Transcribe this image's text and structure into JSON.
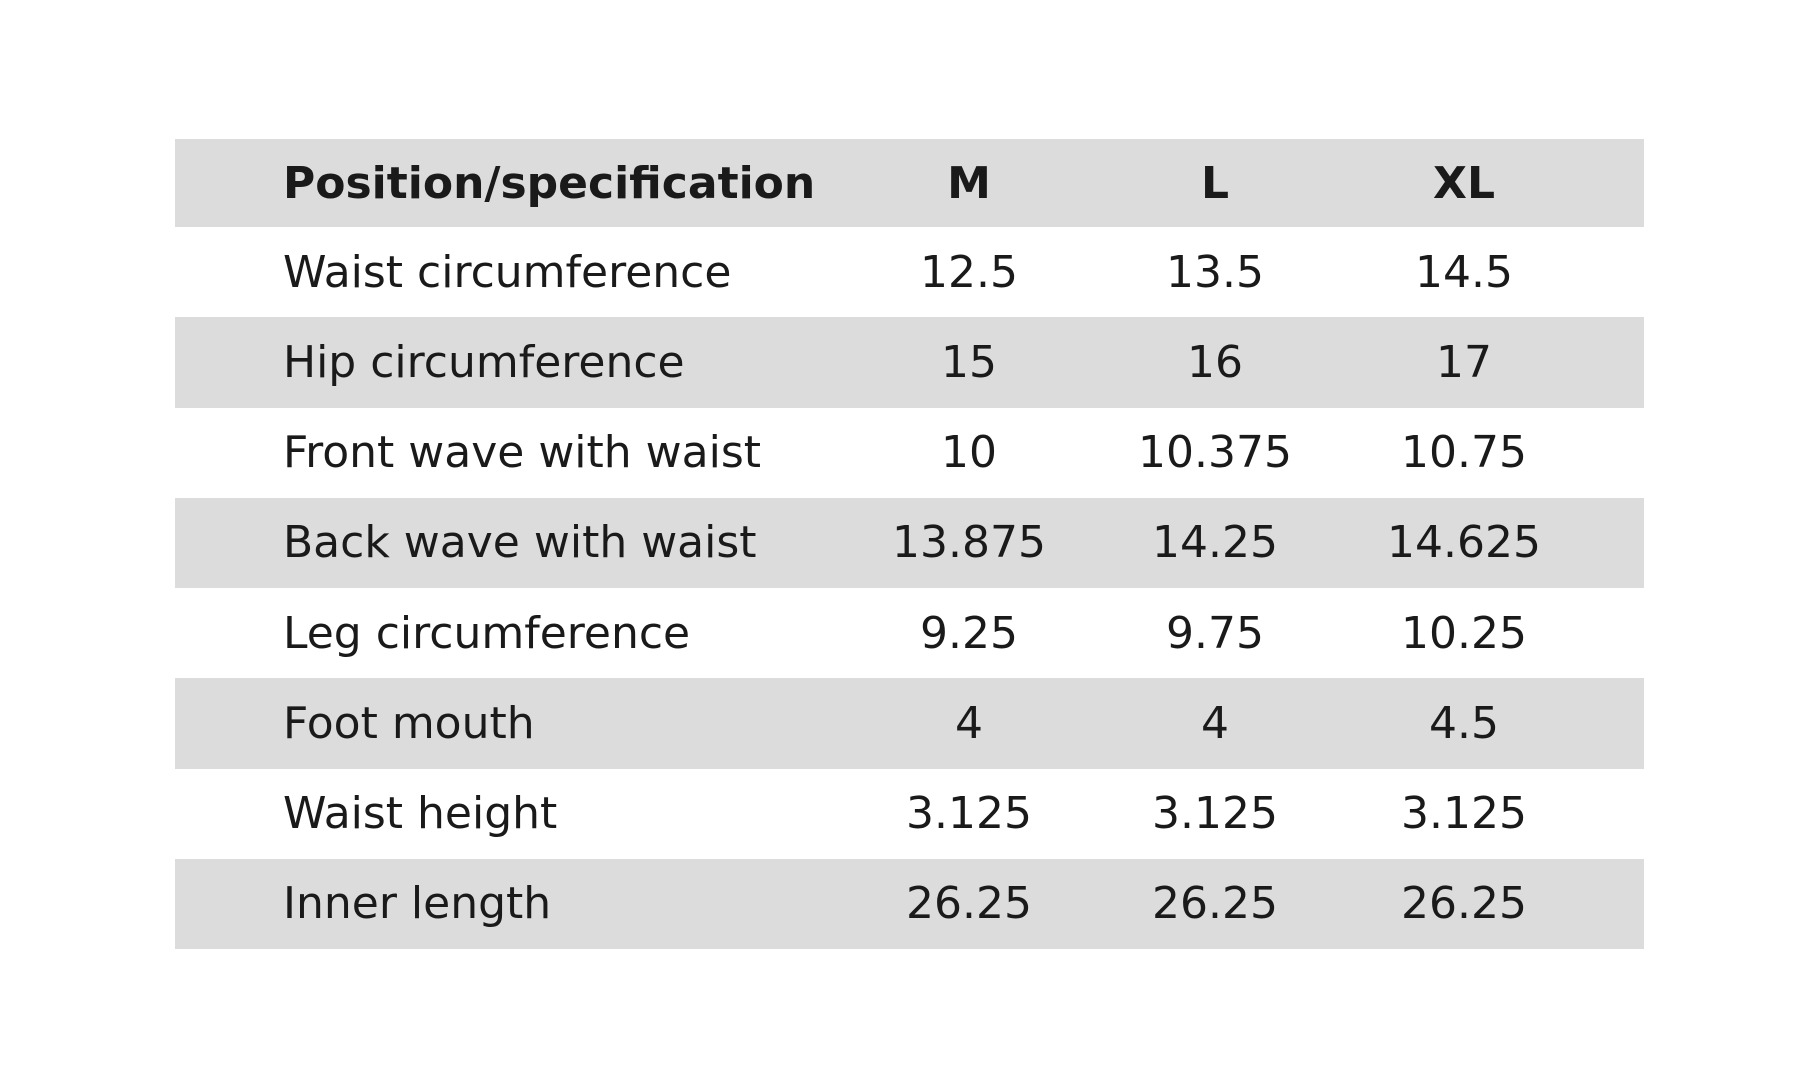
{
  "table": {
    "header": [
      "Position/specification",
      "M",
      "L",
      "XL"
    ],
    "rows": [
      [
        "Waist circumference",
        "12.5",
        "13.5",
        "14.5"
      ],
      [
        "Hip circumference",
        "15",
        "16",
        "17"
      ],
      [
        "Front wave with waist",
        "10",
        "10.375",
        "10.75"
      ],
      [
        "Back wave with waist",
        "13.875",
        "14.25",
        "14.625"
      ],
      [
        "Leg circumference",
        "9.25",
        "9.75",
        "10.25"
      ],
      [
        "Foot mouth",
        "4",
        "4",
        "4.5"
      ],
      [
        "Waist height",
        "3.125",
        "3.125",
        "3.125"
      ],
      [
        "Inner length",
        "26.25",
        "26.25",
        "26.25"
      ]
    ]
  }
}
